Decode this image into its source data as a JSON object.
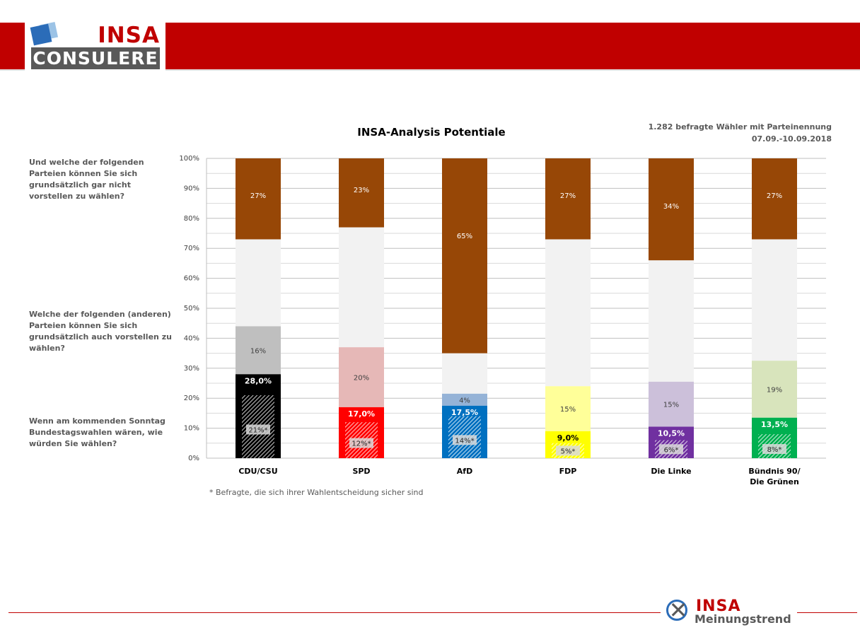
{
  "header": {
    "logo_top": "INSA",
    "logo_bottom": "CONSULERE"
  },
  "questions": {
    "q1": "Und welche der folgenden Parteien können Sie sich grundsätzlich gar nicht vorstellen zu wählen?",
    "q2": "Welche der folgenden (anderen) Parteien können Sie sich grundsätzlich auch vorstellen zu wählen?",
    "q3": "Wenn am kommenden Sonntag Bundestagswahlen wären, wie würden Sie wählen?"
  },
  "meta": {
    "line1": "1.282 befragte Wähler mit Parteinennung",
    "line2": "07.09.-10.09.2018"
  },
  "footnote": "* Befragte, die sich ihrer Wahlentscheidung sicher sind",
  "footer": {
    "logo_top": "INSA",
    "logo_bottom": "Meinungstrend"
  },
  "chart_data": {
    "type": "bar",
    "stacked": true,
    "title": "INSA-Analysis Potentiale",
    "ylim": [
      0,
      100
    ],
    "y_ticks": [
      "0%",
      "10%",
      "20%",
      "30%",
      "40%",
      "50%",
      "60%",
      "70%",
      "80%",
      "90%",
      "100%"
    ],
    "grid": true,
    "categories": [
      "CDU/CSU",
      "SPD",
      "AfD",
      "FDP",
      "Die Linke",
      "Bündnis 90/\nDie Grünen"
    ],
    "vote": [
      28.0,
      17.0,
      17.5,
      9.0,
      10.5,
      13.5
    ],
    "vote_labels": [
      "28,0%",
      "17,0%",
      "17,5%",
      "9,0%",
      "10,5%",
      "13,5%"
    ],
    "sure": [
      21,
      12,
      14,
      5,
      6,
      8
    ],
    "sure_labels": [
      "21%*",
      "12%*",
      "14%*",
      "5%*",
      "6%*",
      "8%*"
    ],
    "potential": [
      16,
      20,
      4,
      15,
      15,
      19
    ],
    "potential_labels": [
      "16%",
      "20%",
      "4%",
      "15%",
      "15%",
      "19%"
    ],
    "never": [
      27,
      23,
      65,
      27,
      34,
      27
    ],
    "never_labels": [
      "27%",
      "23%",
      "65%",
      "27%",
      "34%",
      "27%"
    ],
    "colors": {
      "vote": [
        "#000000",
        "#ff0000",
        "#0070c0",
        "#ffff00",
        "#7030a0",
        "#00b050"
      ],
      "potential": [
        "#bfbfbf",
        "#e6b8b7",
        "#95b3d7",
        "#ffff99",
        "#ccc0da",
        "#d8e4bc"
      ],
      "never": "#974706",
      "rest": "#f2f2f2",
      "vote_text": [
        "#ffffff",
        "#ffffff",
        "#ffffff",
        "#000000",
        "#ffffff",
        "#ffffff"
      ]
    }
  }
}
